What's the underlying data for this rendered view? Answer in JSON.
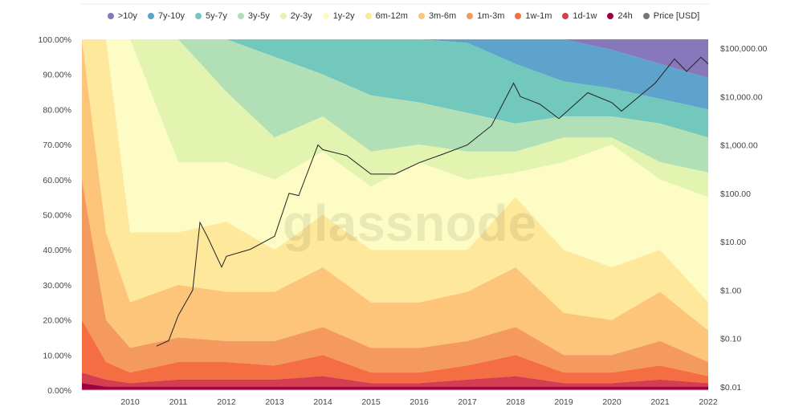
{
  "chart_data": {
    "type": "area",
    "stacked": true,
    "watermark": "glassnode",
    "legend_position": "top",
    "grid": false,
    "x": [
      2009.0,
      2009.5,
      2010,
      2011,
      2012,
      2013,
      2014,
      2015,
      2016,
      2017,
      2018,
      2019,
      2020,
      2021,
      2022
    ],
    "xlim": [
      2009,
      2022
    ],
    "x_ticks": [
      "2010",
      "2011",
      "2012",
      "2013",
      "2014",
      "2015",
      "2016",
      "2017",
      "2018",
      "2019",
      "2020",
      "2021",
      "2022"
    ],
    "y_left_ticks": [
      "0.00%",
      "10.00%",
      "20.00%",
      "30.00%",
      "40.00%",
      "50.00%",
      "60.00%",
      "70.00%",
      "80.00%",
      "90.00%",
      "100.00%"
    ],
    "ylim_left": [
      0,
      100
    ],
    "y_right_scale": "log",
    "y_right_ticks": [
      "$0.01",
      "$0.10",
      "$1.00",
      "$10.00",
      "$100.00",
      "$1,000.00",
      "$10,000.00",
      "$100,000.00"
    ],
    "ylim_right": [
      0.01,
      100000
    ],
    "cumulative_top_note_units": "percent",
    "series": [
      {
        "name": "24h",
        "color": "#9e0142",
        "cum_top": [
          2,
          1,
          1,
          1,
          1,
          1,
          1,
          1,
          1,
          1,
          1,
          1,
          1,
          1,
          1
        ]
      },
      {
        "name": "1d-1w",
        "color": "#d53e4f",
        "cum_top": [
          5,
          3,
          2,
          3,
          3,
          3,
          4,
          2,
          2,
          3,
          4,
          2,
          2,
          3,
          2
        ]
      },
      {
        "name": "1w-1m",
        "color": "#f46d43",
        "cum_top": [
          20,
          8,
          5,
          8,
          8,
          7,
          10,
          5,
          5,
          7,
          10,
          5,
          5,
          7,
          4
        ]
      },
      {
        "name": "1m-3m",
        "color": "#f49a5e",
        "cum_top": [
          60,
          20,
          12,
          15,
          14,
          14,
          18,
          12,
          12,
          14,
          18,
          10,
          10,
          14,
          8
        ]
      },
      {
        "name": "3m-6m",
        "color": "#fdc57a",
        "cum_top": [
          100,
          45,
          25,
          30,
          28,
          28,
          35,
          25,
          25,
          28,
          35,
          22,
          20,
          28,
          17
        ]
      },
      {
        "name": "6m-12m",
        "color": "#fee89b",
        "cum_top": [
          100,
          100,
          45,
          45,
          48,
          40,
          50,
          40,
          40,
          40,
          55,
          40,
          35,
          40,
          25
        ]
      },
      {
        "name": "1y-2y",
        "color": "#fcfcc4",
        "cum_top": [
          100,
          100,
          100,
          65,
          65,
          60,
          68,
          58,
          65,
          60,
          62,
          65,
          70,
          60,
          55
        ]
      },
      {
        "name": "2y-3y",
        "color": "#e2f4b0",
        "cum_top": [
          100,
          100,
          100,
          100,
          85,
          72,
          78,
          68,
          70,
          68,
          68,
          72,
          72,
          65,
          62
        ]
      },
      {
        "name": "3y-5y",
        "color": "#b2e0b6",
        "cum_top": [
          100,
          100,
          100,
          100,
          100,
          95,
          90,
          84,
          82,
          79,
          76,
          78,
          78,
          76,
          72
        ]
      },
      {
        "name": "5y-7y",
        "color": "#72c8bd",
        "cum_top": [
          100,
          100,
          100,
          100,
          100,
          100,
          100,
          100,
          100,
          99,
          93,
          88,
          86,
          83,
          80
        ]
      },
      {
        "name": "7y-10y",
        "color": "#5ea3cc",
        "cum_top": [
          100,
          100,
          100,
          100,
          100,
          100,
          100,
          100,
          100,
          100,
          100,
          100,
          97,
          93,
          89
        ]
      },
      {
        "name": ">10y",
        "color": "#8778bb",
        "cum_top": [
          100,
          100,
          100,
          100,
          100,
          100,
          100,
          100,
          100,
          100,
          100,
          100,
          100,
          100,
          100
        ]
      }
    ],
    "price": {
      "name": "Price [USD]",
      "color": "#222",
      "x": [
        2010.55,
        2010.8,
        2011.0,
        2011.3,
        2011.45,
        2011.6,
        2011.9,
        2012.0,
        2012.5,
        2013.0,
        2013.3,
        2013.5,
        2013.9,
        2014.0,
        2014.5,
        2015.0,
        2015.5,
        2016.0,
        2016.5,
        2017.0,
        2017.5,
        2017.96,
        2018.1,
        2018.5,
        2018.9,
        2019.5,
        2020.0,
        2020.2,
        2020.9,
        2021.3,
        2021.55,
        2021.85,
        2022.0
      ],
      "y": [
        0.07,
        0.09,
        0.3,
        1.0,
        25,
        13,
        3,
        5,
        7,
        13,
        100,
        90,
        1000,
        800,
        600,
        250,
        250,
        430,
        650,
        1000,
        2500,
        19000,
        10000,
        7000,
        3500,
        12000,
        7500,
        5000,
        19000,
        60000,
        33000,
        65000,
        47000
      ]
    }
  }
}
